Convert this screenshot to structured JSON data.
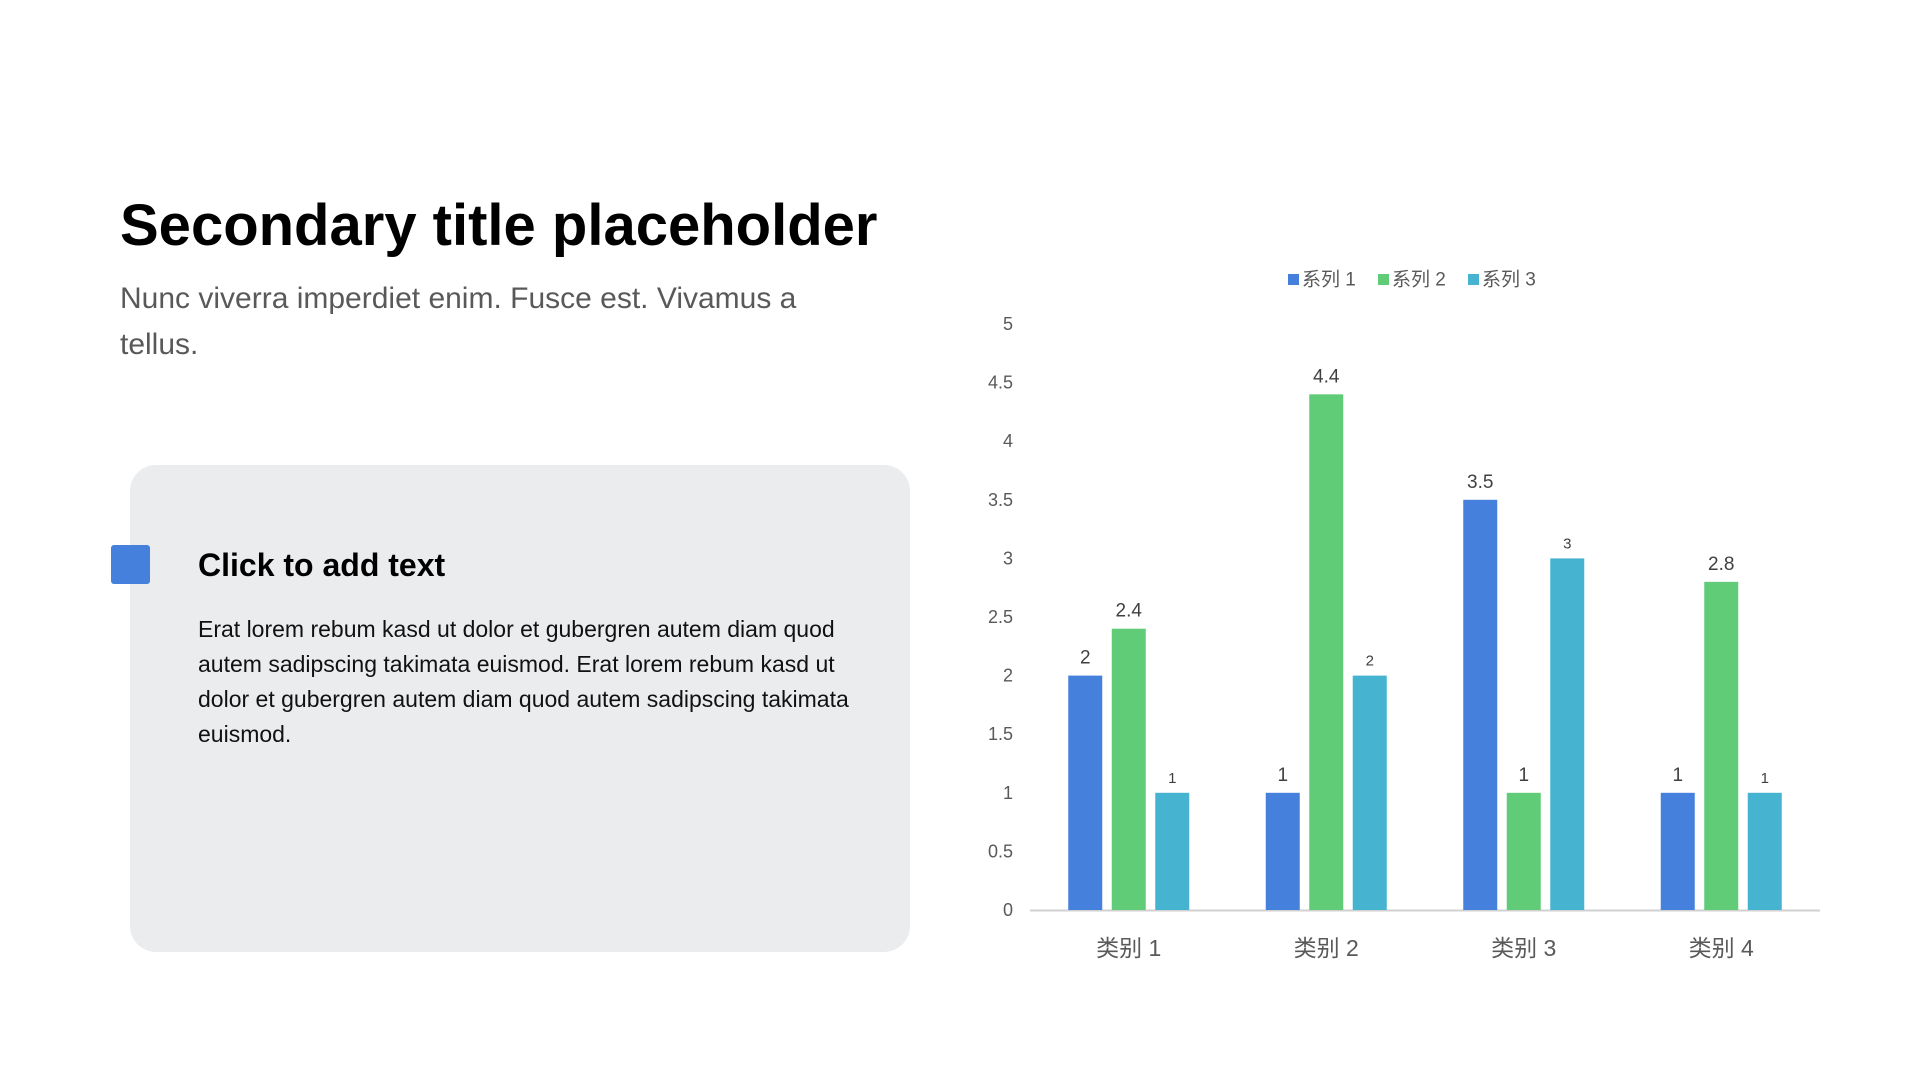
{
  "slide": {
    "title": "Secondary title placeholder",
    "subtitle": "Nunc viverra imperdiet enim. Fusce est. Vivamus a tellus."
  },
  "card": {
    "heading": "Click to add text",
    "body": "Erat lorem rebum kasd ut dolor et gubergren autem diam quod autem sadipscing takimata euismod. Erat lorem rebum kasd ut dolor et gubergren autem diam quod autem sadipscing takimata euismod.",
    "accent_color": "#4480dc",
    "background_color": "#ebecee"
  },
  "chart_data": {
    "type": "bar",
    "categories": [
      "类别 1",
      "类别 2",
      "类别 3",
      "类别 4"
    ],
    "series": [
      {
        "name": "系列 1",
        "values": [
          2,
          1,
          3.5,
          1
        ],
        "color": "#4480dc"
      },
      {
        "name": "系列 2",
        "values": [
          2.4,
          4.4,
          1,
          2.8
        ],
        "color": "#61cc78"
      },
      {
        "name": "系列 3",
        "values": [
          1,
          2,
          3,
          1
        ],
        "color": "#46b4d0"
      }
    ],
    "y_ticks": [
      "0",
      "0.5",
      "1",
      "1.5",
      "2",
      "2.5",
      "3",
      "3.5",
      "4",
      "4.5",
      "5"
    ],
    "ylim": [
      0,
      5
    ],
    "legend_position": "top",
    "grid": false,
    "data_labels": true
  }
}
